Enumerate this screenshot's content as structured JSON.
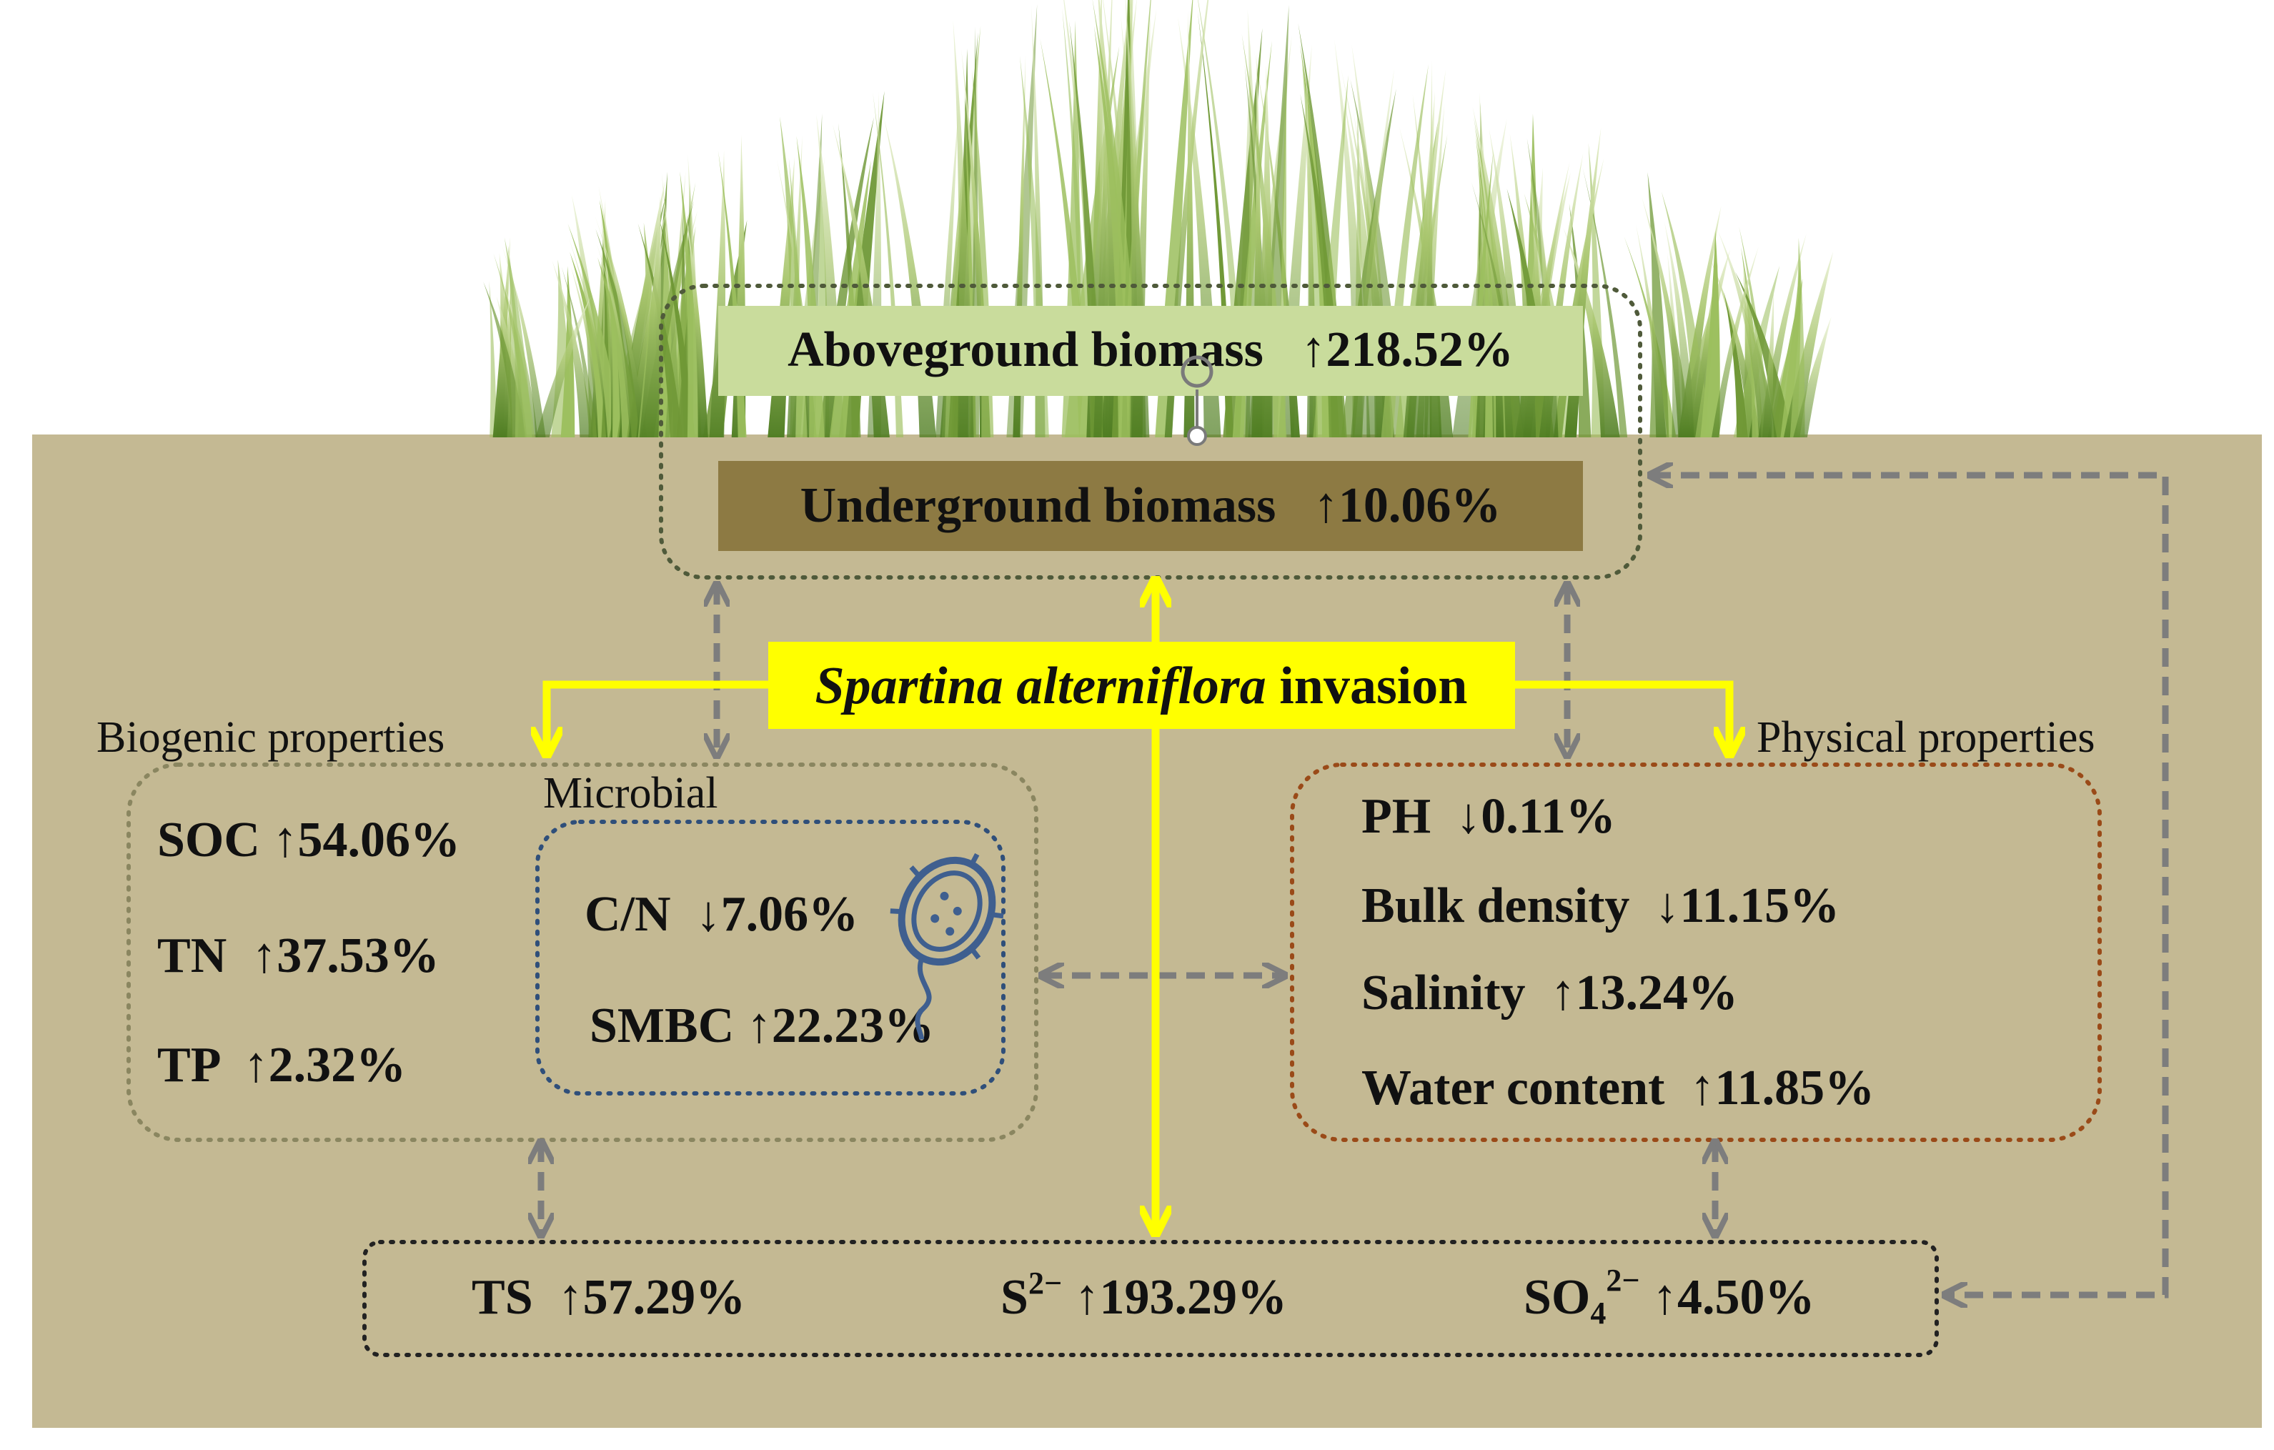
{
  "colors": {
    "soil": "#c4b993",
    "aboveground_box": "#c9dc9c",
    "underground_box": "#8d7a43",
    "invasion_box": "#ffff00",
    "yellow_arrow": "#ffff00",
    "grey_arrow": "#7d7d7d",
    "biogenic_border": "#8a8660",
    "microbial_border": "#2f4f7a",
    "physical_border": "#9a4a18",
    "sulfur_border": "#222222",
    "grass_light": "#b9d28a",
    "grass_dark": "#5f8a2a"
  },
  "plant": {
    "aboveground": {
      "label": "Aboveground biomass",
      "change": "↑218.52%"
    },
    "underground": {
      "label": "Underground biomass",
      "change": "↑10.06%"
    }
  },
  "invasion": {
    "italic": "Spartina alterniflora",
    "rest": " invasion"
  },
  "biogenic": {
    "title": "Biogenic properties",
    "items": [
      {
        "label": "SOC",
        "change": "↑54.06%"
      },
      {
        "label": "TN",
        "change": "↑37.53%"
      },
      {
        "label": "TP",
        "change": "↑2.32%"
      }
    ]
  },
  "microbial": {
    "title": "Microbial",
    "items": [
      {
        "label": "C/N",
        "change": "↓7.06%"
      },
      {
        "label": "SMBC",
        "change": "↑22.23%"
      }
    ],
    "icon": "bacterium-icon"
  },
  "physical": {
    "title": "Physical properties",
    "items": [
      {
        "label": "PH",
        "change": "↓0.11%"
      },
      {
        "label": "Bulk density",
        "change": "↓11.15%"
      },
      {
        "label": "Salinity",
        "change": "↑13.24%"
      },
      {
        "label": "Water content",
        "change": "↑11.85%"
      }
    ]
  },
  "sulfur": {
    "ts": {
      "label": "TS",
      "change": "↑57.29%"
    },
    "s2": {
      "label": "S",
      "sup": "2−",
      "change": "↑193.29%"
    },
    "so4": {
      "label": "SO",
      "sub": "4",
      "sup": "2−",
      "change": "↑4.50%"
    }
  }
}
